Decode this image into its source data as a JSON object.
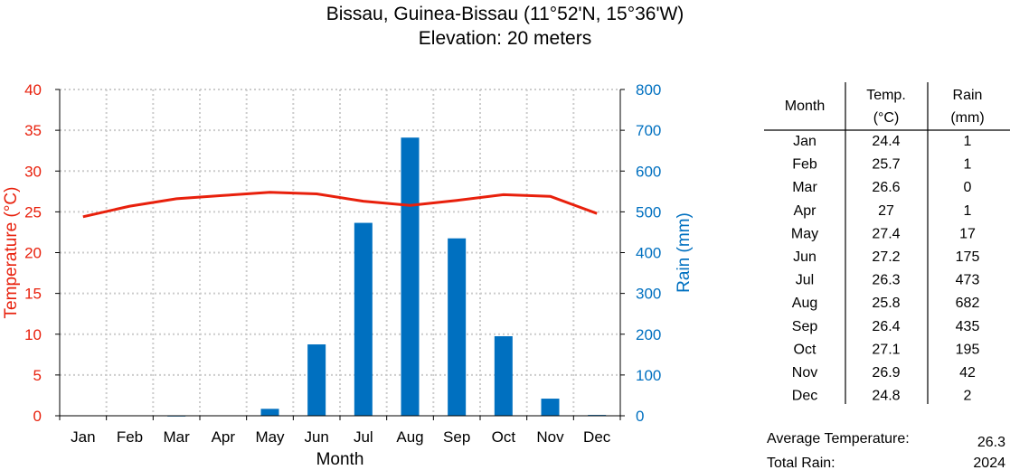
{
  "title_line1": "Bissau, Guinea-Bissau (11°52'N, 15°36'W)",
  "title_line2": "Elevation: 20 meters",
  "colors": {
    "temperature": "#e8200c",
    "rain": "#0070c0",
    "grid": "#cccccc",
    "axis": "#000000"
  },
  "chart_data": {
    "type": "bar+line",
    "categories": [
      "Jan",
      "Feb",
      "Mar",
      "Apr",
      "May",
      "Jun",
      "Jul",
      "Aug",
      "Sep",
      "Oct",
      "Nov",
      "Dec"
    ],
    "xlabel": "Month",
    "ylabel_left": "Temperature (°C)",
    "ylabel_right": "Rain (mm)",
    "ylim_left": [
      0,
      40
    ],
    "yticks_left": [
      0,
      5,
      10,
      15,
      20,
      25,
      30,
      35,
      40
    ],
    "ylim_right": [
      0,
      800
    ],
    "yticks_right": [
      0,
      100,
      200,
      300,
      400,
      500,
      600,
      700,
      800
    ],
    "grid": true,
    "series": [
      {
        "kind": "line",
        "axis": "left",
        "values": [
          24.4,
          25.7,
          26.6,
          27,
          27.4,
          27.2,
          26.3,
          25.8,
          26.4,
          27.1,
          26.9,
          24.8
        ]
      },
      {
        "kind": "bar",
        "axis": "right",
        "values": [
          1,
          1,
          0,
          1,
          17,
          175,
          473,
          682,
          435,
          195,
          42,
          2
        ]
      }
    ]
  },
  "table": {
    "headers": [
      [
        "Month"
      ],
      [
        "Temp.",
        "(°C)"
      ],
      [
        "Rain",
        "(mm)"
      ]
    ],
    "rows": [
      [
        "Jan",
        "24.4",
        "1"
      ],
      [
        "Feb",
        "25.7",
        "1"
      ],
      [
        "Mar",
        "26.6",
        "0"
      ],
      [
        "Apr",
        "27",
        "1"
      ],
      [
        "May",
        "27.4",
        "17"
      ],
      [
        "Jun",
        "27.2",
        "175"
      ],
      [
        "Jul",
        "26.3",
        "473"
      ],
      [
        "Aug",
        "25.8",
        "682"
      ],
      [
        "Sep",
        "26.4",
        "435"
      ],
      [
        "Oct",
        "27.1",
        "195"
      ],
      [
        "Nov",
        "26.9",
        "42"
      ],
      [
        "Dec",
        "24.8",
        "2"
      ]
    ]
  },
  "summary": {
    "avg_temp_label": "Average Temperature:",
    "avg_temp_value": "26.3",
    "total_rain_label": "Total Rain:",
    "total_rain_value": "2024"
  }
}
